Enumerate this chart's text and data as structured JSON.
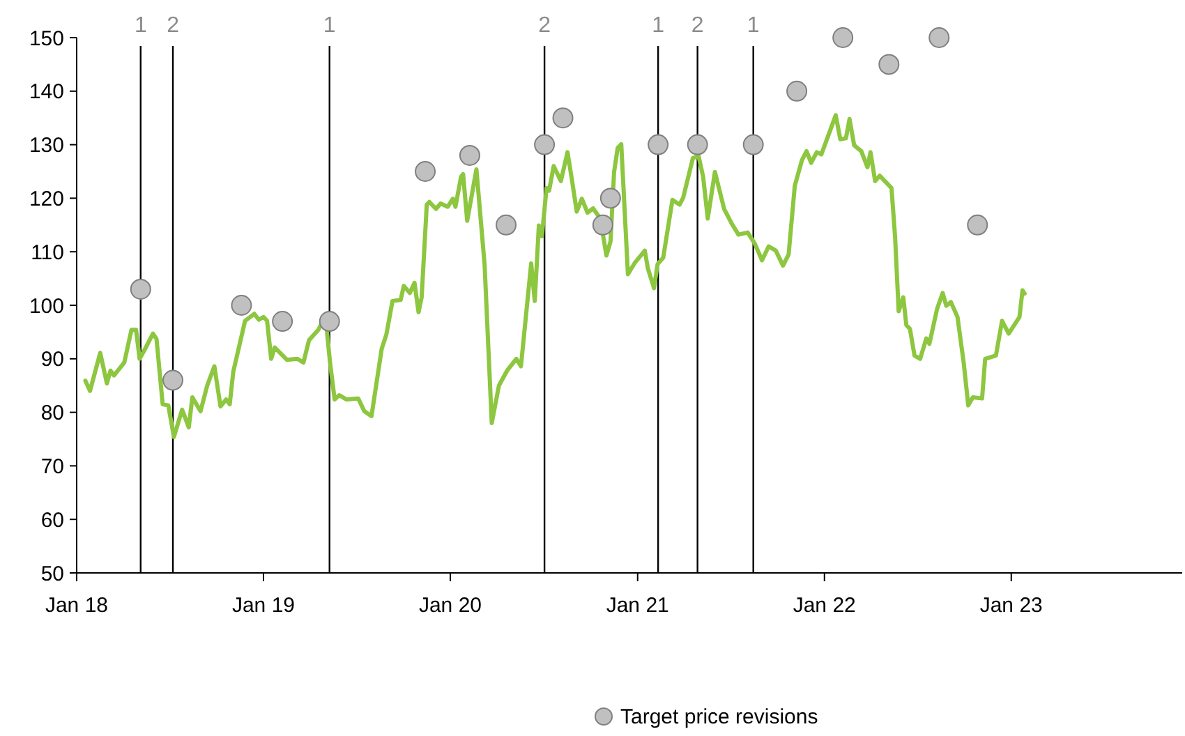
{
  "chart_data": {
    "type": "line",
    "xlim": [
      "2018-01-01",
      "2023-12-01"
    ],
    "xticks": [
      {
        "value": "2018-01-01",
        "label": "Jan 18"
      },
      {
        "value": "2019-01-01",
        "label": "Jan 19"
      },
      {
        "value": "2020-01-01",
        "label": "Jan 20"
      },
      {
        "value": "2021-01-01",
        "label": "Jan 21"
      },
      {
        "value": "2022-01-01",
        "label": "Jan 22"
      },
      {
        "value": "2023-01-01",
        "label": "Jan 23"
      }
    ],
    "ylim": [
      50,
      150
    ],
    "yticks": [
      50,
      60,
      70,
      80,
      90,
      100,
      110,
      120,
      130,
      140,
      150
    ],
    "grid": false,
    "legend": "bottom",
    "series": [
      {
        "color": "#8dc63f",
        "marker": "none",
        "line_style": "solid",
        "x": [
          "2018-01-18",
          "2018-01-27",
          "2018-02-16",
          "2018-03-01",
          "2018-03-08",
          "2018-03-15",
          "2018-04-04",
          "2018-04-18",
          "2018-04-27",
          "2018-05-04",
          "2018-05-15",
          "2018-05-30",
          "2018-06-06",
          "2018-06-18",
          "2018-06-29",
          "2018-07-10",
          "2018-07-26",
          "2018-08-08",
          "2018-08-15",
          "2018-08-31",
          "2018-09-13",
          "2018-09-27",
          "2018-10-09",
          "2018-10-20",
          "2018-10-27",
          "2018-11-03",
          "2018-11-26",
          "2018-12-14",
          "2018-12-23",
          "2019-01-01",
          "2019-01-08",
          "2019-01-16",
          "2019-01-23",
          "2019-02-16",
          "2019-03-08",
          "2019-03-20",
          "2019-03-31",
          "2019-04-18",
          "2019-05-02",
          "2019-05-11",
          "2019-05-20",
          "2019-05-29",
          "2019-06-12",
          "2019-07-05",
          "2019-07-17",
          "2019-07-31",
          "2019-08-20",
          "2019-08-29",
          "2019-09-10",
          "2019-09-26",
          "2019-10-02",
          "2019-10-14",
          "2019-10-23",
          "2019-10-31",
          "2019-11-06",
          "2019-11-16",
          "2019-11-21",
          "2019-12-04",
          "2019-12-13",
          "2019-12-27",
          "2020-01-06",
          "2020-01-11",
          "2020-01-22",
          "2020-01-26",
          "2020-02-03",
          "2020-02-21",
          "2020-03-08",
          "2020-03-22",
          "2020-04-05",
          "2020-04-21",
          "2020-05-09",
          "2020-05-18",
          "2020-06-07",
          "2020-06-14",
          "2020-06-22",
          "2020-06-28",
          "2020-07-07",
          "2020-07-12",
          "2020-07-21",
          "2020-08-04",
          "2020-08-17",
          "2020-08-26",
          "2020-09-04",
          "2020-09-14",
          "2020-09-25",
          "2020-10-06",
          "2020-10-20",
          "2020-11-01",
          "2020-11-09",
          "2020-11-16",
          "2020-11-23",
          "2020-11-30",
          "2020-12-13",
          "2020-12-27",
          "2021-01-15",
          "2021-01-21",
          "2021-02-02",
          "2021-02-09",
          "2021-02-20",
          "2021-03-10",
          "2021-03-24",
          "2021-03-31",
          "2021-04-19",
          "2021-04-30",
          "2021-05-09",
          "2021-05-18",
          "2021-06-01",
          "2021-06-19",
          "2021-07-03",
          "2021-07-17",
          "2021-08-04",
          "2021-08-18",
          "2021-09-01",
          "2021-09-14",
          "2021-09-28",
          "2021-10-12",
          "2021-10-23",
          "2021-11-04",
          "2021-11-18",
          "2021-11-27",
          "2021-12-06",
          "2021-12-17",
          "2021-12-26",
          "2022-01-23",
          "2022-02-01",
          "2022-02-12",
          "2022-02-19",
          "2022-02-28",
          "2022-03-14",
          "2022-03-26",
          "2022-04-01",
          "2022-04-10",
          "2022-04-19",
          "2022-05-12",
          "2022-05-19",
          "2022-05-26",
          "2022-06-04",
          "2022-06-10",
          "2022-06-17",
          "2022-06-26",
          "2022-07-07",
          "2022-07-19",
          "2022-07-25",
          "2022-08-09",
          "2022-08-20",
          "2022-08-27",
          "2022-09-05",
          "2022-09-18",
          "2022-09-30",
          "2022-10-09",
          "2022-10-18",
          "2022-11-05",
          "2022-11-11",
          "2022-12-02",
          "2022-12-14",
          "2022-12-27",
          "2023-01-17",
          "2023-01-23",
          "2023-01-27"
        ],
        "values": [
          85.9,
          84.0,
          91.1,
          85.4,
          87.8,
          86.9,
          89.3,
          95.4,
          95.4,
          90.0,
          91.9,
          94.7,
          93.7,
          81.5,
          81.3,
          75.4,
          80.5,
          77.2,
          82.8,
          80.2,
          85.0,
          88.6,
          81.1,
          82.4,
          81.5,
          87.6,
          97.1,
          98.4,
          97.3,
          97.8,
          97.1,
          90.0,
          92.1,
          89.8,
          90.0,
          89.3,
          93.5,
          95.4,
          98.0,
          89.3,
          82.4,
          83.2,
          82.4,
          82.6,
          80.2,
          79.3,
          91.9,
          94.5,
          100.8,
          101.0,
          103.6,
          102.3,
          104.2,
          98.7,
          101.5,
          118.8,
          119.3,
          118.0,
          119.0,
          118.4,
          119.9,
          118.4,
          124.0,
          124.5,
          115.8,
          125.4,
          107.6,
          78.0,
          85.0,
          87.8,
          90.0,
          88.6,
          107.8,
          100.8,
          114.9,
          112.9,
          121.9,
          121.4,
          126.0,
          123.2,
          128.6,
          123.2,
          117.5,
          119.9,
          117.3,
          118.1,
          116.2,
          109.3,
          111.9,
          124.9,
          129.4,
          130.1,
          105.8,
          108.0,
          110.2,
          106.9,
          103.2,
          107.7,
          108.9,
          119.7,
          118.8,
          120.1,
          127.5,
          127.9,
          124.0,
          116.2,
          124.9,
          118.0,
          115.4,
          113.2,
          113.6,
          111.5,
          108.4,
          111.0,
          110.2,
          107.4,
          109.5,
          122.3,
          127.1,
          128.8,
          126.6,
          128.6,
          128.2,
          135.5,
          131.0,
          131.2,
          134.8,
          129.9,
          128.8,
          125.8,
          128.6,
          123.2,
          124.2,
          121.9,
          112.8,
          98.9,
          101.5,
          96.3,
          95.6,
          90.6,
          90.0,
          93.8,
          92.8,
          99.3,
          102.3,
          99.9,
          100.6,
          97.8,
          89.3,
          81.3,
          82.8,
          82.6,
          90.0,
          90.6,
          97.1,
          94.7,
          97.8,
          102.8,
          102.2
        ]
      },
      {
        "type": "scatter",
        "name": "Target price revisions",
        "color": "#c0c0c0",
        "marker": "circle",
        "x": [
          "2018-05-06",
          "2018-07-08",
          "2018-11-19",
          "2019-02-07",
          "2019-05-10",
          "2019-11-13",
          "2020-02-08",
          "2020-04-19",
          "2020-07-03",
          "2020-08-08",
          "2020-10-25",
          "2020-11-09",
          "2021-02-10",
          "2021-04-28",
          "2021-08-15",
          "2021-11-08",
          "2022-02-06",
          "2022-05-07",
          "2022-08-13",
          "2022-10-27"
        ],
        "values": [
          103,
          86,
          100,
          97,
          97,
          125,
          128,
          115,
          130,
          135,
          115,
          120,
          130,
          130,
          130,
          140,
          150,
          145,
          150,
          115
        ]
      }
    ],
    "ref_lines": [
      {
        "axis": "x",
        "value": "2018-05-06",
        "label": "1",
        "color": "#000000"
      },
      {
        "axis": "x",
        "value": "2018-07-08",
        "label": "2",
        "color": "#000000"
      },
      {
        "axis": "x",
        "value": "2019-05-10",
        "label": "1",
        "color": "#000000"
      },
      {
        "axis": "x",
        "value": "2020-07-03",
        "label": "2",
        "color": "#000000"
      },
      {
        "axis": "x",
        "value": "2021-02-10",
        "label": "1",
        "color": "#000000"
      },
      {
        "axis": "x",
        "value": "2021-04-28",
        "label": "2",
        "color": "#000000"
      },
      {
        "axis": "x",
        "value": "2021-08-15",
        "label": "1",
        "color": "#000000"
      }
    ]
  }
}
